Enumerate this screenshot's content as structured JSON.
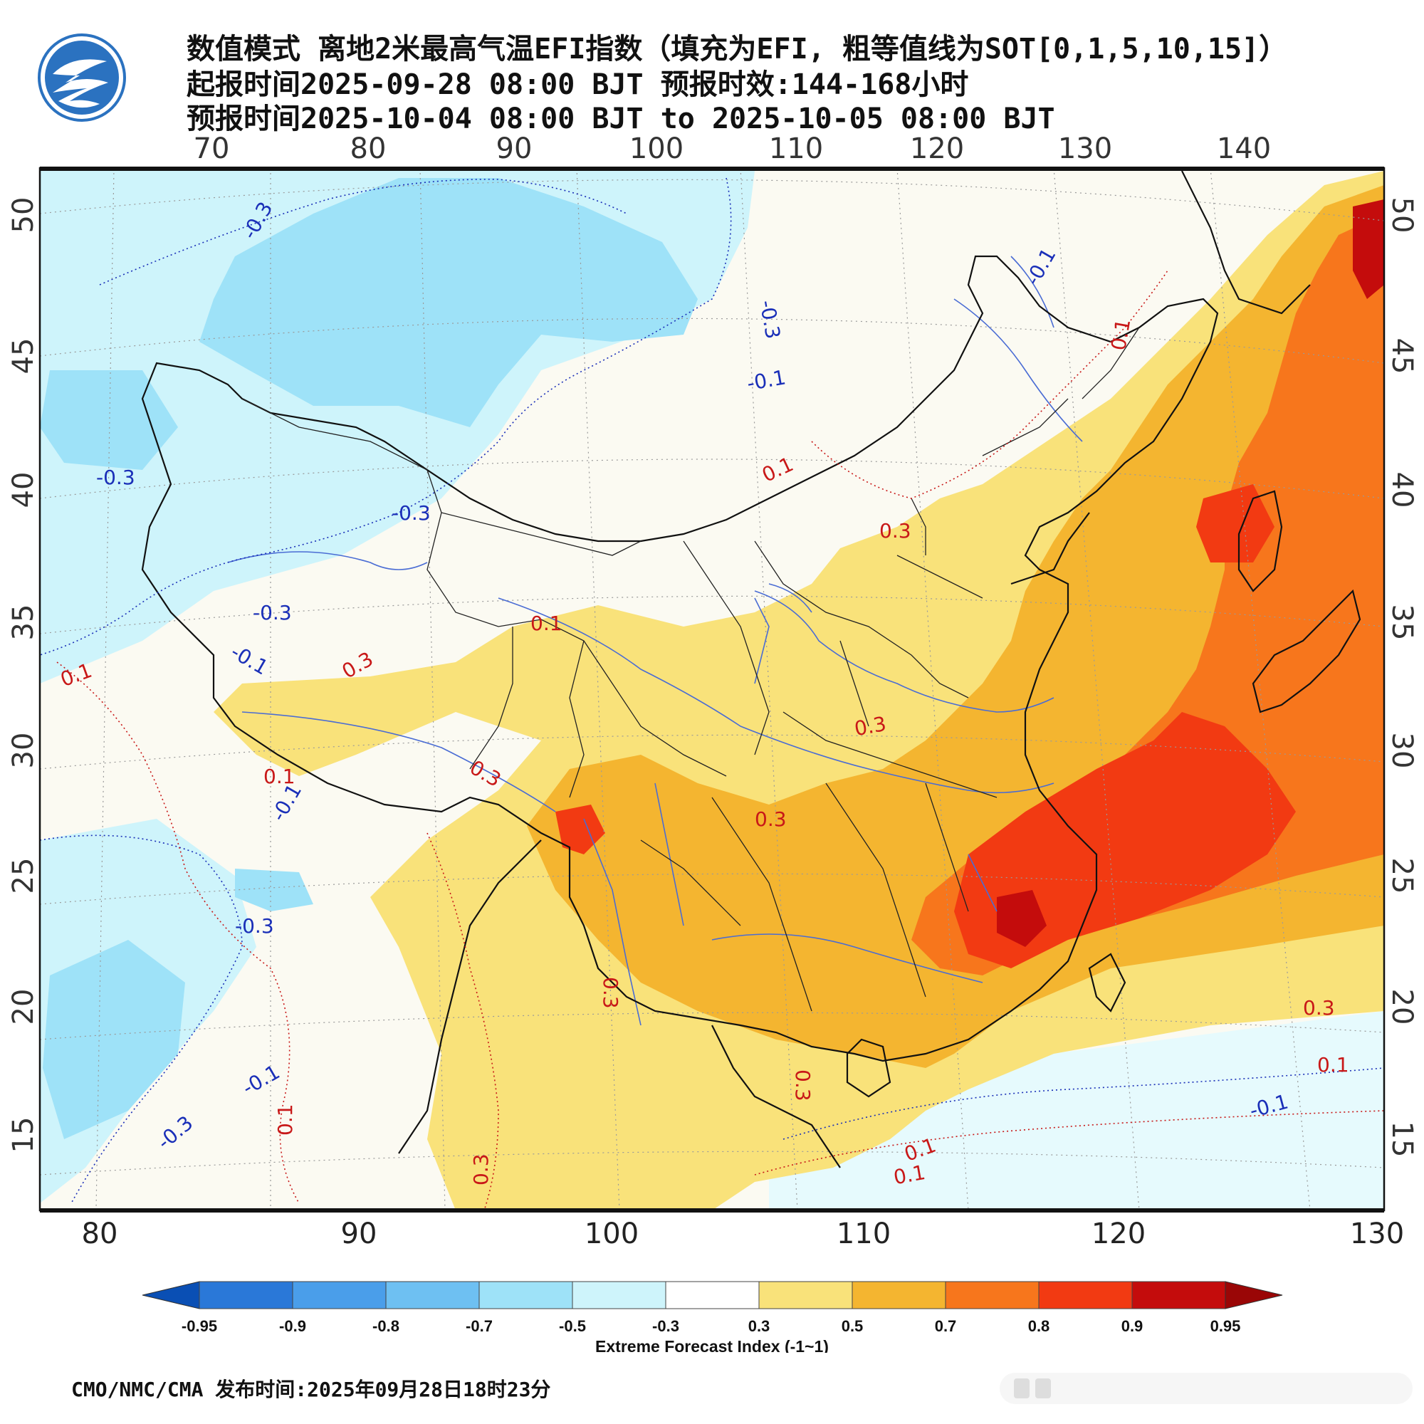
{
  "header": {
    "title_line1": "数值模式 离地2米最高气温EFI指数（填充为EFI, 粗等值线为SOT[0,1,5,10,15]）",
    "title_line2": "起报时间2025-09-28 08:00 BJT 预报时效:144-168小时",
    "title_line3": "预报时间2025-10-04 08:00 BJT to 2025-10-05 08:00 BJT"
  },
  "map": {
    "top_lon_ticks": [
      "70",
      "80",
      "90",
      "100",
      "110",
      "120",
      "130",
      "140"
    ],
    "bottom_lon_ticks": [
      "80",
      "90",
      "100",
      "110",
      "120",
      "130"
    ],
    "lat_ticks": [
      "50",
      "45",
      "40",
      "35",
      "30",
      "25",
      "20",
      "15"
    ],
    "contour_labels": {
      "blue": [
        "-0.3",
        "-0.3",
        "-0.1",
        "-0.3",
        "-0.3",
        "-0.3",
        "-0.1",
        "-0.1",
        "-0.3",
        "-0.1",
        "-0.3",
        "-0.1",
        "-0.1"
      ],
      "red": [
        "0.1",
        "0.1",
        "0.3",
        "0.1",
        "0.1",
        "0.3",
        "0.1",
        "0.3",
        "0.3",
        "0.3",
        "0.3",
        "0.1",
        "0.1",
        "0.3",
        "0.3",
        "0.1",
        "0.3",
        "0.1"
      ]
    }
  },
  "colorbar": {
    "labels": [
      "-0.95",
      "-0.9",
      "-0.8",
      "-0.7",
      "-0.5",
      "-0.3",
      "0.3",
      "0.5",
      "0.7",
      "0.8",
      "0.9",
      "0.95"
    ],
    "colors": [
      "#0a4fb4",
      "#2a78d8",
      "#4a9eea",
      "#6ec0f2",
      "#9ee2f8",
      "#cef4fb",
      "#ffffff",
      "#f9e27a",
      "#f4b530",
      "#f7761c",
      "#f23a12",
      "#c40c0c",
      "#9a0606"
    ],
    "title": "Extreme Forecast Index (-1~1)"
  },
  "footer": {
    "text": "CMO/NMC/CMA 发布时间:2025年09月28日18时23分"
  }
}
